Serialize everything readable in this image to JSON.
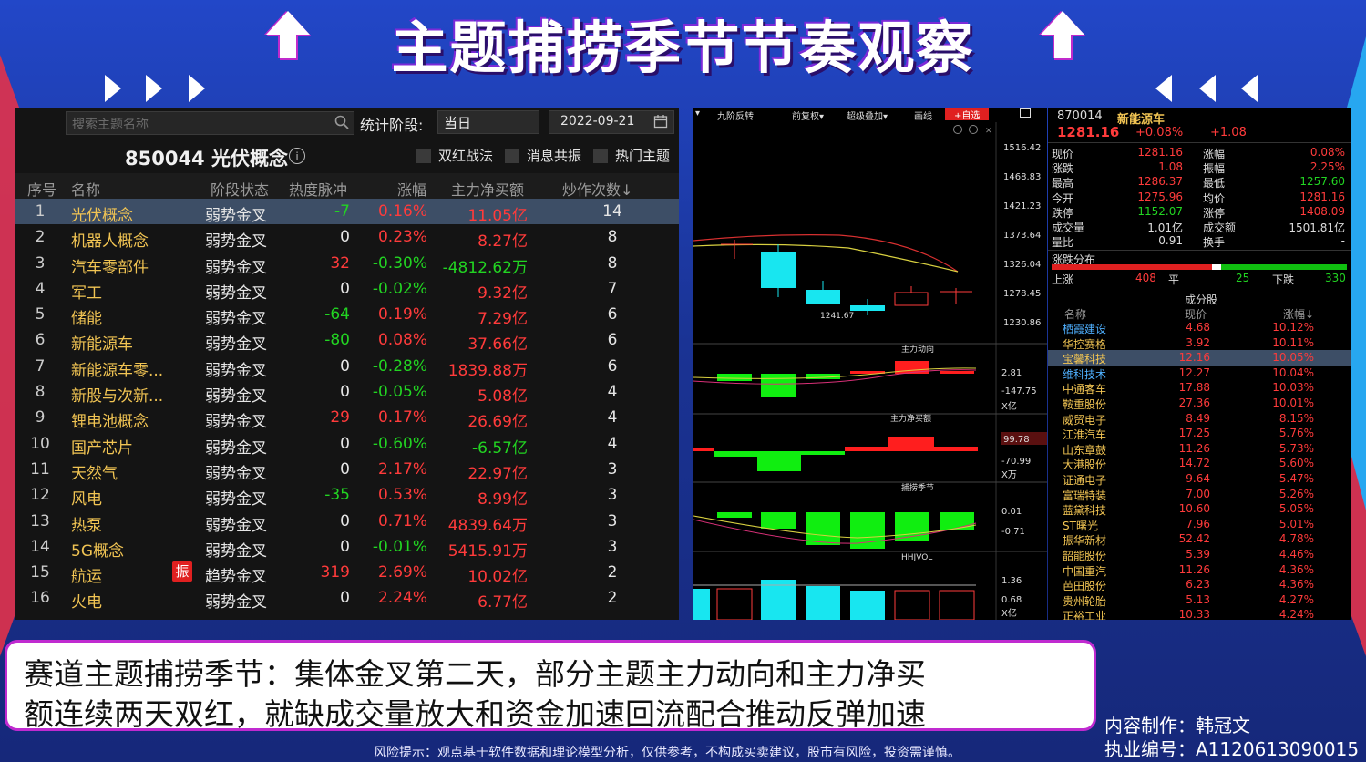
{
  "title": "主题捕捞季节节奏观察",
  "left_panel": {
    "search_placeholder": "搜索主题名称",
    "stat_label": "统计阶段:",
    "stage_select": "当日",
    "date": "2022-09-21",
    "concept_title": "850044 光伏概念",
    "checkboxes": [
      "双红战法",
      "消息共振",
      "热门主题"
    ],
    "columns": [
      "序号",
      "名称",
      "阶段状态",
      "热度脉冲",
      "涨幅",
      "主力净买额",
      "炒作次数↓"
    ],
    "rows": [
      {
        "idx": "1",
        "name": "光伏概念",
        "stage": "弱势金叉",
        "heat": "-7",
        "heat_c": "green",
        "chg": "0.16%",
        "chg_c": "red",
        "net": "11.05亿",
        "net_c": "red",
        "cnt": "14"
      },
      {
        "idx": "2",
        "name": "机器人概念",
        "stage": "弱势金叉",
        "heat": "0",
        "heat_c": "white",
        "chg": "0.23%",
        "chg_c": "red",
        "net": "8.27亿",
        "net_c": "red",
        "cnt": "8"
      },
      {
        "idx": "3",
        "name": "汽车零部件",
        "stage": "弱势金叉",
        "heat": "32",
        "heat_c": "red",
        "chg": "-0.30%",
        "chg_c": "green",
        "net": "-4812.62万",
        "net_c": "green",
        "cnt": "8"
      },
      {
        "idx": "4",
        "name": "军工",
        "stage": "弱势金叉",
        "heat": "0",
        "heat_c": "white",
        "chg": "-0.02%",
        "chg_c": "green",
        "net": "9.32亿",
        "net_c": "red",
        "cnt": "7"
      },
      {
        "idx": "5",
        "name": "储能",
        "stage": "弱势金叉",
        "heat": "-64",
        "heat_c": "green",
        "chg": "0.19%",
        "chg_c": "red",
        "net": "7.29亿",
        "net_c": "red",
        "cnt": "6"
      },
      {
        "idx": "6",
        "name": "新能源车",
        "stage": "弱势金叉",
        "heat": "-80",
        "heat_c": "green",
        "chg": "0.08%",
        "chg_c": "red",
        "net": "37.66亿",
        "net_c": "red",
        "cnt": "6"
      },
      {
        "idx": "7",
        "name": "新能源车零...",
        "stage": "弱势金叉",
        "heat": "0",
        "heat_c": "white",
        "chg": "-0.28%",
        "chg_c": "green",
        "net": "1839.88万",
        "net_c": "red",
        "cnt": "6"
      },
      {
        "idx": "8",
        "name": "新股与次新...",
        "stage": "弱势金叉",
        "heat": "0",
        "heat_c": "white",
        "chg": "-0.05%",
        "chg_c": "green",
        "net": "5.08亿",
        "net_c": "red",
        "cnt": "4"
      },
      {
        "idx": "9",
        "name": "锂电池概念",
        "stage": "弱势金叉",
        "heat": "29",
        "heat_c": "red",
        "chg": "0.17%",
        "chg_c": "red",
        "net": "26.69亿",
        "net_c": "red",
        "cnt": "4"
      },
      {
        "idx": "10",
        "name": "国产芯片",
        "stage": "弱势金叉",
        "heat": "0",
        "heat_c": "white",
        "chg": "-0.60%",
        "chg_c": "green",
        "net": "-6.57亿",
        "net_c": "green",
        "cnt": "4"
      },
      {
        "idx": "11",
        "name": "天然气",
        "stage": "弱势金叉",
        "heat": "0",
        "heat_c": "white",
        "chg": "2.17%",
        "chg_c": "red",
        "net": "22.97亿",
        "net_c": "red",
        "cnt": "3"
      },
      {
        "idx": "12",
        "name": "风电",
        "stage": "弱势金叉",
        "heat": "-35",
        "heat_c": "green",
        "chg": "0.53%",
        "chg_c": "red",
        "net": "8.99亿",
        "net_c": "red",
        "cnt": "3"
      },
      {
        "idx": "13",
        "name": "热泵",
        "stage": "弱势金叉",
        "heat": "0",
        "heat_c": "white",
        "chg": "0.71%",
        "chg_c": "red",
        "net": "4839.64万",
        "net_c": "red",
        "cnt": "3"
      },
      {
        "idx": "14",
        "name": "5G概念",
        "stage": "弱势金叉",
        "heat": "0",
        "heat_c": "white",
        "chg": "-0.01%",
        "chg_c": "green",
        "net": "5415.91万",
        "net_c": "red",
        "cnt": "3"
      },
      {
        "idx": "15",
        "name": "航运",
        "stage": "趋势金叉",
        "heat": "319",
        "heat_c": "red",
        "chg": "2.69%",
        "chg_c": "red",
        "net": "10.02亿",
        "net_c": "red",
        "cnt": "2",
        "badge": "振"
      },
      {
        "idx": "16",
        "name": "火电",
        "stage": "弱势金叉",
        "heat": "0",
        "heat_c": "white",
        "chg": "2.24%",
        "chg_c": "red",
        "net": "6.77亿",
        "net_c": "red",
        "cnt": "2"
      }
    ]
  },
  "chart_panel": {
    "toolbar": [
      "九阶反转",
      "前复权▾",
      "超级叠加▾",
      "画线",
      "+自选"
    ],
    "price_ticks": [
      "1516.42",
      "1468.83",
      "1421.23",
      "1373.64",
      "1326.04",
      "1278.45",
      "1230.86"
    ],
    "low_label": "1241.67",
    "sub1": {
      "name": "主力动向",
      "ticks": [
        "2.81",
        "-147.75",
        "X亿"
      ]
    },
    "sub2": {
      "name": "主力净买额",
      "ticks": [
        "99.78",
        "-70.99",
        "X万"
      ]
    },
    "sub3": {
      "name": "捕捞季节",
      "ticks": [
        "0.01",
        "-0.71"
      ]
    },
    "sub4": {
      "name": "HHJVOL",
      "ticks": [
        "1.36",
        "0.68",
        "X亿"
      ]
    }
  },
  "quote_panel": {
    "code": "870014",
    "name": "新能源车",
    "price": "1281.16",
    "pct": "+0.08%",
    "change": "+1.08",
    "grid": [
      [
        "现价",
        "1281.16",
        "涨幅",
        "0.08%"
      ],
      [
        "涨跌",
        "1.08",
        "振幅",
        "2.25%"
      ],
      [
        "最高",
        "1286.37",
        "最低",
        "1257.60"
      ],
      [
        "今开",
        "1275.96",
        "均价",
        "1281.16"
      ],
      [
        "跌停",
        "1152.07",
        "涨停",
        "1408.09"
      ],
      [
        "成交量",
        "1.01亿",
        "成交额",
        "1501.81亿"
      ],
      [
        "量比",
        "0.91",
        "换手",
        "-"
      ]
    ],
    "dist_title": "涨跌分布",
    "dist": {
      "up_label": "上涨",
      "up": "408",
      "flat_label": "平",
      "flat": "25",
      "down_label": "下跌",
      "down": "330"
    },
    "cons_title": "成分股",
    "cons_cols": [
      "名称",
      "现价",
      "涨幅↓"
    ],
    "cons": [
      [
        "栖霞建设",
        "4.68",
        "10.12%"
      ],
      [
        "华控赛格",
        "3.92",
        "10.11%"
      ],
      [
        "宝馨科技",
        "12.16",
        "10.05%"
      ],
      [
        "维科技术",
        "12.27",
        "10.04%"
      ],
      [
        "中通客车",
        "17.88",
        "10.03%"
      ],
      [
        "鞍重股份",
        "27.36",
        "10.01%"
      ],
      [
        "威贸电子",
        "8.49",
        "8.15%"
      ],
      [
        "江淮汽车",
        "17.25",
        "5.76%"
      ],
      [
        "山东章鼓",
        "11.26",
        "5.73%"
      ],
      [
        "大港股份",
        "14.72",
        "5.60%"
      ],
      [
        "证通电子",
        "9.64",
        "5.47%"
      ],
      [
        "富瑞特装",
        "7.00",
        "5.26%"
      ],
      [
        "蓝黛科技",
        "10.60",
        "5.05%"
      ],
      [
        "ST曙光",
        "7.96",
        "5.01%"
      ],
      [
        "振华新材",
        "52.42",
        "4.78%"
      ],
      [
        "韶能股份",
        "5.39",
        "4.46%"
      ],
      [
        "中国重汽",
        "11.26",
        "4.36%"
      ],
      [
        "芭田股份",
        "6.23",
        "4.36%"
      ],
      [
        "贵州轮胎",
        "5.13",
        "4.27%"
      ],
      [
        "正裕工业",
        "10.33",
        "4.24%"
      ]
    ]
  },
  "caption": {
    "line1": "赛道主题捕捞季节：集体金叉第二天，部分主题主力动向和主力净买",
    "line2": "额连续两天双红，就缺成交量放大和资金加速回流配合推动反弹加速"
  },
  "author": "内容制作：韩冠文",
  "license": "执业编号：A1120613090015",
  "risk": "风险提示：观点基于软件数据和理论模型分析，仅供参考，不构成买卖建议，股市有风险，投资需谨慎。",
  "colors": {
    "up": "#ff3b3b",
    "down": "#22d422",
    "name": "#f1c453",
    "selected_row": "#3d4e66",
    "accent": "#c02ad0"
  }
}
